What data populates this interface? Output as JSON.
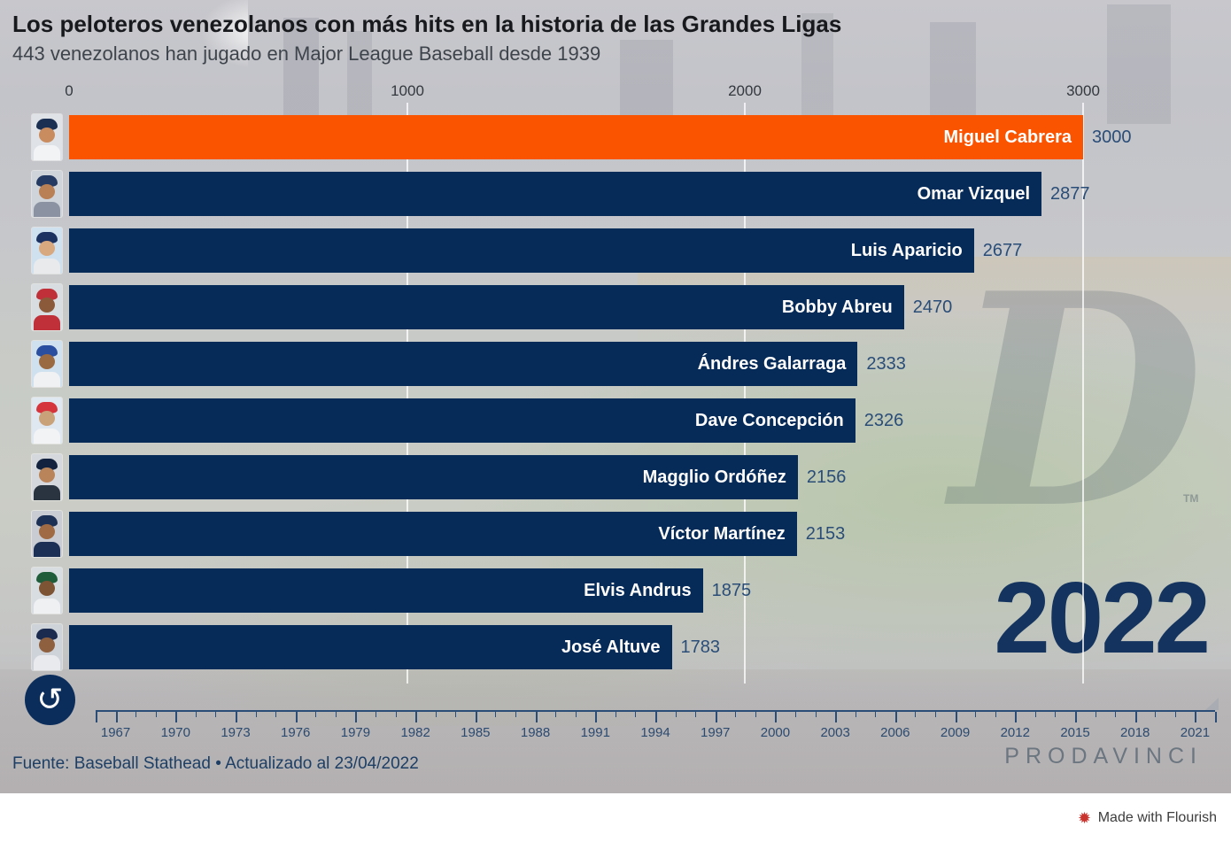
{
  "header": {
    "title": "Los peloteros venezolanos con más hits en la historia de las Grandes Ligas",
    "subtitle": "443 venezolanos han jugado en Major League Baseball desde 1939"
  },
  "chart_data": {
    "type": "bar",
    "orientation": "horizontal",
    "title": "Los peloteros venezolanos con más hits en la historia de las Grandes Ligas",
    "categories": [
      "Miguel Cabrera",
      "Omar Vizquel",
      "Luis Aparicio",
      "Bobby Abreu",
      "Ándres Galarraga",
      "Dave Concepción",
      "Magglio Ordóñez",
      "Víctor Martínez",
      "Elvis Andrus",
      "José Altuve"
    ],
    "values": [
      3000,
      2877,
      2677,
      2470,
      2333,
      2326,
      2156,
      2153,
      1875,
      1783
    ],
    "xlim": [
      0,
      3000
    ],
    "x_ticks": [
      "0",
      "1000",
      "2000",
      "3000"
    ],
    "grid": "vertical white gridlines at 0/1000/2000/3000",
    "legend": "none",
    "bar_color_default": "#062b59",
    "bar_color_leader": "#fb5400",
    "leader_index": 0,
    "value_label_color": "#2a4d78",
    "current_year": "2022",
    "timeline": {
      "start": 1966,
      "end": 2022,
      "label_start": 1967,
      "label_step": 3,
      "label_end": 2021,
      "labels": [
        "1967",
        "1970",
        "1973",
        "1976",
        "1979",
        "1982",
        "1985",
        "1988",
        "1991",
        "1994",
        "1997",
        "2000",
        "2003",
        "2006",
        "2009",
        "2012",
        "2015",
        "2018",
        "2021"
      ]
    },
    "avatars": [
      {
        "cap": "#1a2f52",
        "jersey": "#f2f3f5",
        "skin": "#c98c5f",
        "bg": "#dfe3e8"
      },
      {
        "cap": "#243a63",
        "jersey": "#8b93a2",
        "skin": "#b97f55",
        "bg": "#cfd4da"
      },
      {
        "cap": "#1c3261",
        "jersey": "#e8eaec",
        "skin": "#d8a87e",
        "bg": "#cfe0ef"
      },
      {
        "cap": "#c03038",
        "jersey": "#c03038",
        "skin": "#8a5a3a",
        "bg": "#d8dde2"
      },
      {
        "cap": "#2a4ea0",
        "jersey": "#f0f1f3",
        "skin": "#9a6a42",
        "bg": "#cfe0ef"
      },
      {
        "cap": "#d6343c",
        "jersey": "#f2f3f5",
        "skin": "#caa27a",
        "bg": "#dfe8f0"
      },
      {
        "cap": "#13233f",
        "jersey": "#2a3440",
        "skin": "#b9845a",
        "bg": "#d5d9de"
      },
      {
        "cap": "#1c2f55",
        "jersey": "#1c2f55",
        "skin": "#a06b44",
        "bg": "#c9cdd3"
      },
      {
        "cap": "#1f5c3a",
        "jersey": "#eef0f2",
        "skin": "#7d5434",
        "bg": "#d8dde2"
      },
      {
        "cap": "#1b2b50",
        "jersey": "#e8eaee",
        "skin": "#8e6040",
        "bg": "#ced3d9"
      }
    ]
  },
  "watermark": {
    "letter": "D",
    "tm": "TM"
  },
  "controls": {
    "replay_glyph": "↺"
  },
  "footer": {
    "source": "Fuente: Baseball Stathead • Actualizado al 23/04/2022",
    "brand": "PRODAVINCI",
    "year_label": "2022"
  },
  "attribution": {
    "text": "Made with Flourish",
    "icon_color": "#c9342e"
  }
}
